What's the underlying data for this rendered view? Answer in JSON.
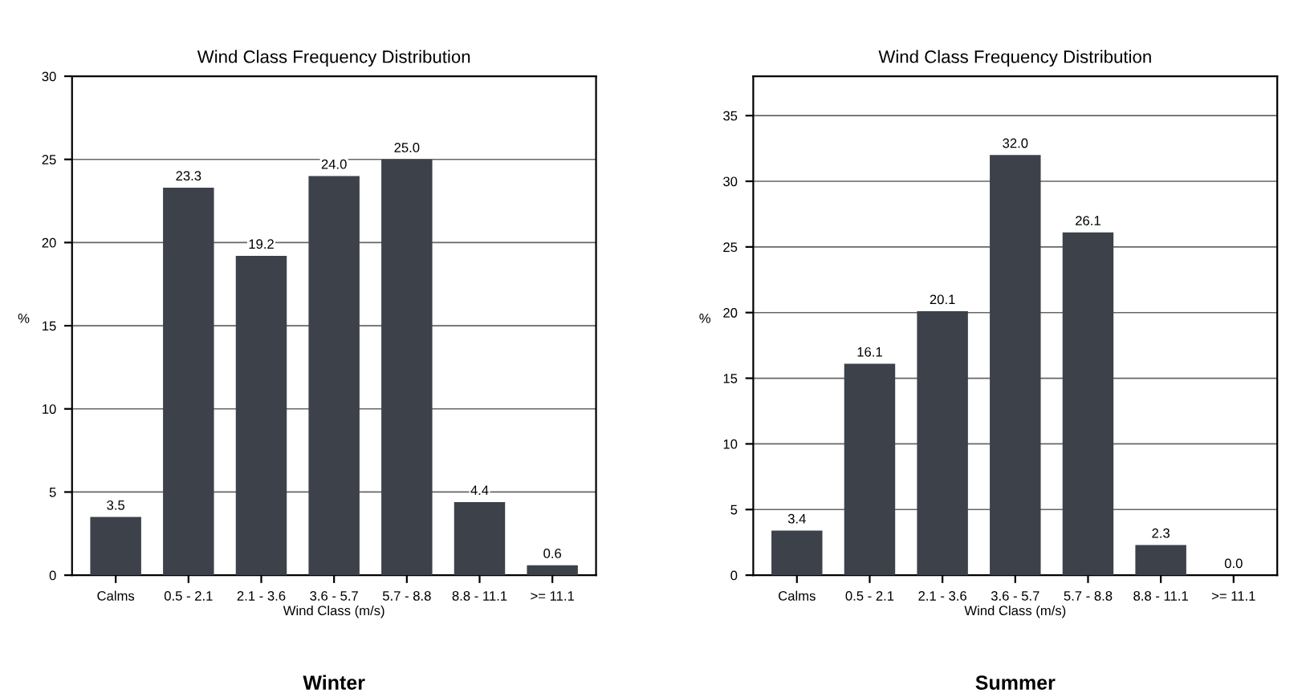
{
  "chart_data": [
    {
      "type": "bar",
      "title": "Wind Class Frequency Distribution",
      "xlabel": "Wind Class (m/s)",
      "ylabel": "%",
      "annotations": [
        "Winter"
      ],
      "categories": [
        "Calms",
        "0.5 - 2.1",
        "2.1 - 3.6",
        "3.6 - 5.7",
        "5.7 - 8.8",
        "8.8 - 11.1",
        ">= 11.1"
      ],
      "values": [
        3.5,
        23.3,
        19.2,
        24.0,
        25.0,
        4.4,
        0.6
      ],
      "color": "#3c414a",
      "ylim": [
        0,
        30
      ],
      "yticks": [
        0,
        5,
        10,
        15,
        20,
        25,
        30
      ],
      "grid": "y",
      "value_labels": [
        "3.5",
        "23.3",
        "19.2",
        "24.0",
        "25.0",
        "4.4",
        "0.6"
      ]
    },
    {
      "type": "bar",
      "title": "Wind Class Frequency Distribution",
      "xlabel": "Wind Class (m/s)",
      "ylabel": "%",
      "annotations": [
        "Summer"
      ],
      "categories": [
        "Calms",
        "0.5 - 2.1",
        "2.1 - 3.6",
        "3.6 - 5.7",
        "5.7 - 8.8",
        "8.8 - 11.1",
        ">= 11.1"
      ],
      "values": [
        3.4,
        16.1,
        20.1,
        32.0,
        26.1,
        2.3,
        0.0
      ],
      "color": "#3c414a",
      "ylim": [
        0,
        38
      ],
      "yticks": [
        0,
        5,
        10,
        15,
        20,
        25,
        30,
        35
      ],
      "grid": "y",
      "value_labels": [
        "3.4",
        "16.1",
        "20.1",
        "32.0",
        "26.1",
        "2.3",
        "0.0"
      ]
    }
  ]
}
